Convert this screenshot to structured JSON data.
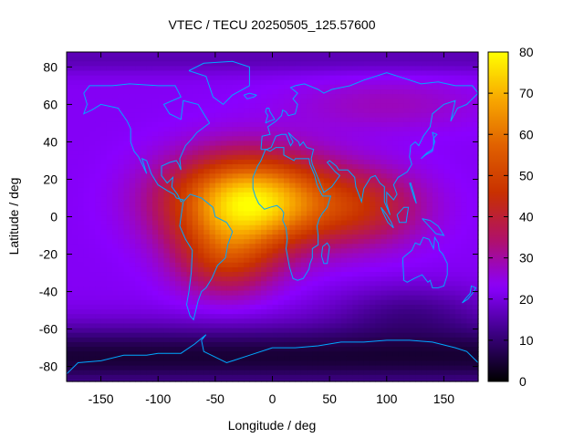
{
  "chart_data": {
    "type": "heatmap",
    "title": "VTEC / TECU 20250505_125.57600",
    "xlabel": "Longitude / deg",
    "ylabel": "Latitude / deg",
    "xlim": [
      -180,
      180
    ],
    "ylim": [
      -88,
      88
    ],
    "x_ticks": [
      -150,
      -100,
      -50,
      0,
      50,
      100,
      150
    ],
    "y_ticks": [
      -80,
      -60,
      -40,
      -20,
      0,
      20,
      40,
      60,
      80
    ],
    "colorbar": {
      "range": [
        0,
        80
      ],
      "ticks": [
        0,
        10,
        20,
        30,
        40,
        50,
        60,
        70,
        80
      ],
      "palette": [
        "#000000",
        "#3a0080",
        "#8a00ff",
        "#b0106a",
        "#c83000",
        "#e06000",
        "#f8a800",
        "#ffff00"
      ]
    },
    "grid_resolution": {
      "dlon_deg": 5,
      "dlat_deg": 2.5
    },
    "features": [
      {
        "name": "equatorial_anomaly_peak",
        "lon": -20,
        "lat": 8,
        "vtec": 78
      },
      {
        "name": "south_atlantic_lobe",
        "lon": -40,
        "lat": -22,
        "vtec": 48
      },
      {
        "name": "indian_ocean_tail",
        "lon": 80,
        "lat": 5,
        "vtec": 42
      },
      {
        "name": "background_midlatitude",
        "vtec": 22
      },
      {
        "name": "southern_polar_minimum",
        "lat": -75,
        "vtec": 4
      }
    ],
    "overlay": "coastlines",
    "colors": {
      "coastline": "#00a8ff",
      "axis": "#000000"
    }
  }
}
